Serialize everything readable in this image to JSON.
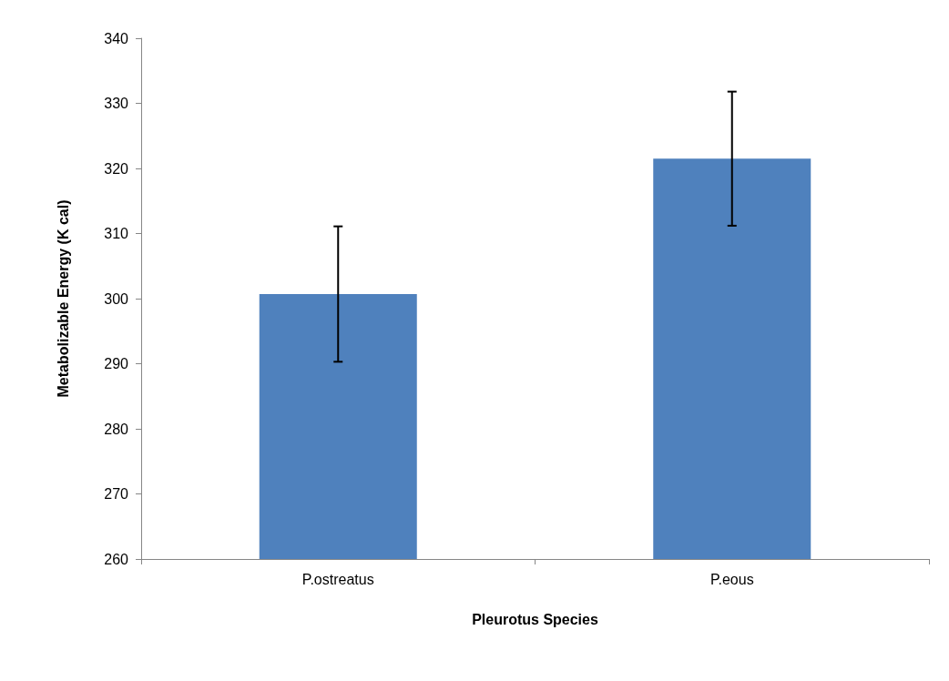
{
  "chart_data": {
    "type": "bar",
    "xlabel": "Pleurotus Species",
    "ylabel": "Metabolizable Energy (K cal)",
    "categories": [
      "P.ostreatus",
      "P.eous"
    ],
    "values": [
      300.7,
      321.5
    ],
    "errors": [
      10.4,
      10.3
    ],
    "color": "#4f81bd",
    "ylim": [
      260,
      340
    ],
    "yticks": [
      260,
      270,
      280,
      290,
      300,
      310,
      320,
      330,
      340
    ],
    "grid": false
  }
}
